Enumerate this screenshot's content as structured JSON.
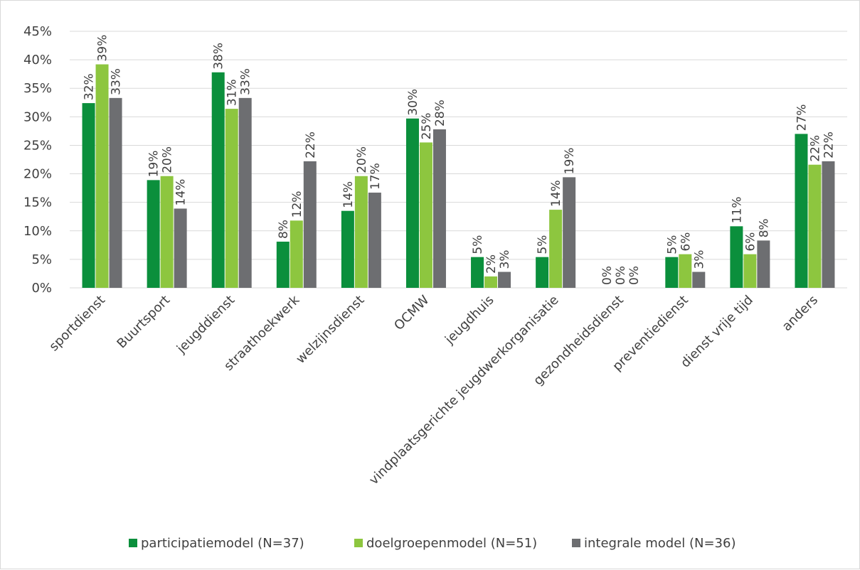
{
  "chart_data": {
    "type": "bar",
    "categories": [
      "sportdienst",
      "Buurtsport",
      "jeugddienst",
      "straathoekwerk",
      "welzijnsdienst",
      "OCMW",
      "jeugdhuis",
      "vindplaatsgerichte jeugdwerkorganisatie",
      "gezondheidsdienst",
      "preventiedienst",
      "dienst vrije tijd",
      "anders"
    ],
    "series": [
      {
        "name": "participatiemodel (N=37)",
        "color": "#0b8f3c",
        "values": [
          32.4,
          18.9,
          37.8,
          8.1,
          13.5,
          29.7,
          5.4,
          5.4,
          0,
          5.4,
          10.8,
          27.0
        ],
        "labels": [
          "32%",
          "19%",
          "38%",
          "8%",
          "14%",
          "30%",
          "5%",
          "5%",
          "0%",
          "5%",
          "11%",
          "27%"
        ]
      },
      {
        "name": "doelgroepenmodel (N=51)",
        "color": "#8dc63f",
        "values": [
          39.2,
          19.6,
          31.4,
          11.8,
          19.6,
          25.5,
          2.0,
          13.7,
          0,
          5.9,
          5.9,
          21.6
        ],
        "labels": [
          "39%",
          "20%",
          "31%",
          "12%",
          "20%",
          "25%",
          "2%",
          "14%",
          "0%",
          "6%",
          "6%",
          "22%"
        ]
      },
      {
        "name": "integrale model (N=36)",
        "color": "#6d6e71",
        "values": [
          33.3,
          13.9,
          33.3,
          22.2,
          16.7,
          27.8,
          2.8,
          19.4,
          0,
          2.8,
          8.3,
          22.2
        ],
        "labels": [
          "33%",
          "14%",
          "33%",
          "22%",
          "17%",
          "28%",
          "3%",
          "19%",
          "0%",
          "3%",
          "8%",
          "22%"
        ]
      }
    ],
    "yticks": [
      "0%",
      "5%",
      "10%",
      "15%",
      "20%",
      "25%",
      "30%",
      "35%",
      "40%",
      "45%"
    ],
    "ylim": [
      0,
      45
    ],
    "grid": true,
    "legend": "bottom"
  }
}
